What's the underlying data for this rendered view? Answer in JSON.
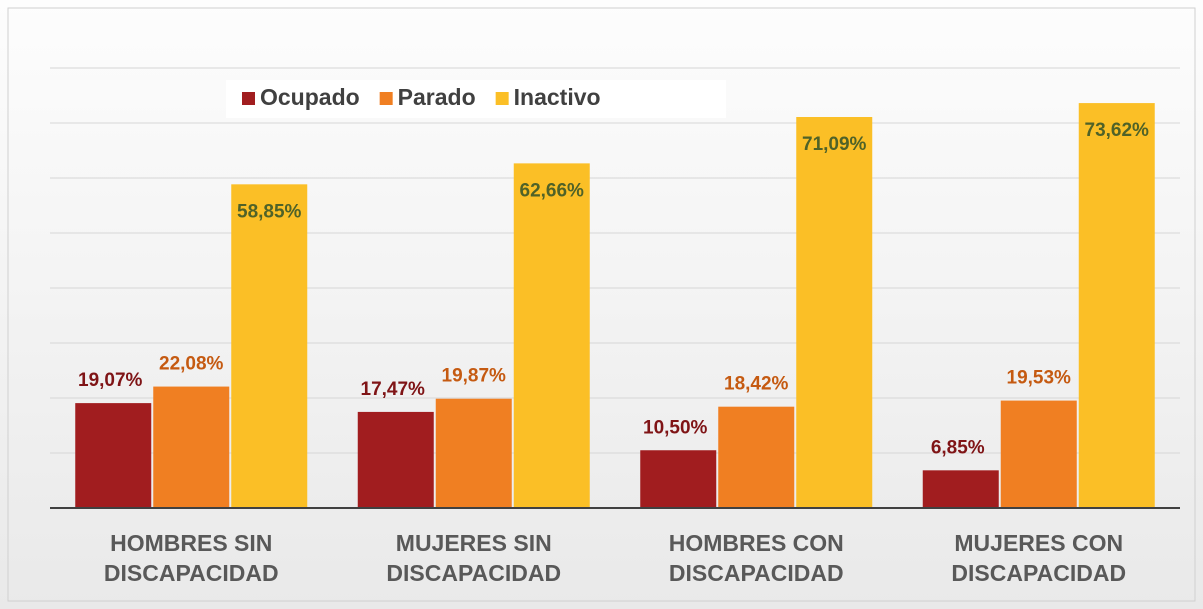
{
  "chart_data": {
    "type": "bar",
    "categories": [
      "HOMBRES SIN DISCAPACIDAD",
      "MUJERES SIN DISCAPACIDAD",
      "HOMBRES CON DISCAPACIDAD",
      "MUJERES CON DISCAPACIDAD"
    ],
    "series": [
      {
        "name": "Ocupado",
        "color": "#a11d1f",
        "label_color": "#7f1416",
        "values": [
          19.07,
          17.47,
          10.5,
          6.85
        ],
        "value_labels": [
          "19,07%",
          "17,47%",
          "10,50%",
          "6,85%"
        ]
      },
      {
        "name": "Parado",
        "color": "#f07f22",
        "label_color": "#c55a11",
        "values": [
          22.08,
          19.87,
          18.42,
          19.53
        ],
        "value_labels": [
          "22,08%",
          "19,87%",
          "18,42%",
          "19,53%"
        ]
      },
      {
        "name": "Inactivo",
        "color": "#fbbf26",
        "label_color": "#4f6228",
        "values": [
          58.85,
          62.66,
          71.09,
          73.62
        ],
        "value_labels": [
          "58,85%",
          "62,66%",
          "71,09%",
          "73,62%"
        ]
      }
    ],
    "ylim": [
      0,
      80
    ],
    "yticks": [
      10,
      20,
      30,
      40,
      50,
      60,
      70,
      80
    ],
    "grid": true,
    "legend": "top"
  }
}
